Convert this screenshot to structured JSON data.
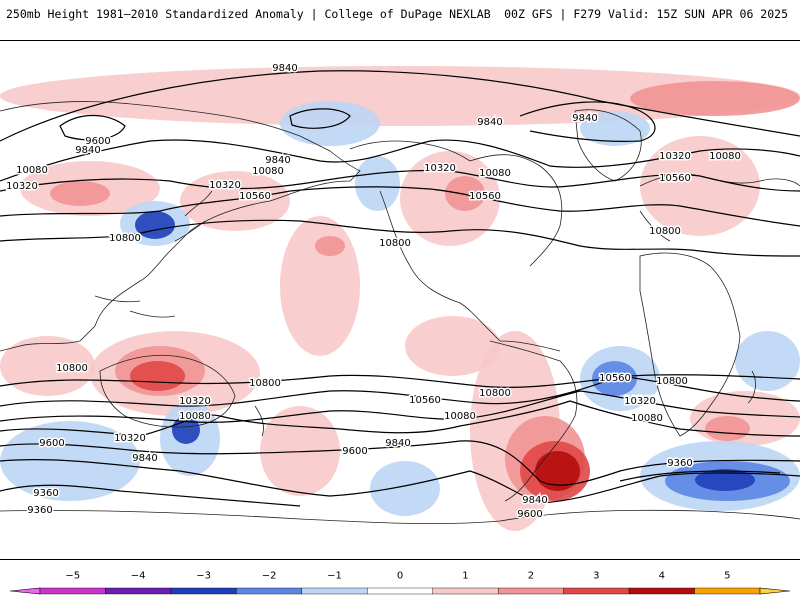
{
  "header": {
    "title_left": "250mb Height 1981–2010 Standardized Anomaly | College of DuPage NEXLAB",
    "title_right": "00Z GFS | F279 Valid: 15Z SUN APR 06 2025"
  },
  "map": {
    "land_color": "#ffffff",
    "coast_color": "#222222",
    "contour_color": "#000000",
    "anomaly_colors": {
      "neg3": "#1f3fb8",
      "neg2": "#5b85e6",
      "neg1": "#bcd6f5",
      "pos1": "#f8c9c9",
      "pos2": "#f19494",
      "pos3": "#e04848",
      "pos4": "#b50c0c"
    },
    "contour_labels": [
      {
        "text": "9840"
      },
      {
        "text": "9600"
      },
      {
        "text": "9840"
      },
      {
        "text": "10080"
      },
      {
        "text": "10320"
      },
      {
        "text": "9840"
      },
      {
        "text": "10080"
      },
      {
        "text": "10320"
      },
      {
        "text": "10560"
      },
      {
        "text": "10800"
      },
      {
        "text": "10320"
      },
      {
        "text": "10080"
      },
      {
        "text": "10560"
      },
      {
        "text": "9840"
      },
      {
        "text": "9840"
      },
      {
        "text": "10320"
      },
      {
        "text": "10080"
      },
      {
        "text": "10560"
      },
      {
        "text": "10800"
      },
      {
        "text": "10800"
      },
      {
        "text": "10800"
      },
      {
        "text": "10800"
      },
      {
        "text": "10560"
      },
      {
        "text": "10080"
      },
      {
        "text": "10320"
      },
      {
        "text": "9600"
      },
      {
        "text": "9840"
      },
      {
        "text": "9360"
      },
      {
        "text": "9360"
      },
      {
        "text": "10560"
      },
      {
        "text": "10080"
      },
      {
        "text": "10320"
      },
      {
        "text": "9840"
      },
      {
        "text": "9600"
      },
      {
        "text": "10800"
      },
      {
        "text": "10560"
      },
      {
        "text": "10800"
      },
      {
        "text": "10320"
      },
      {
        "text": "10080"
      },
      {
        "text": "9840"
      },
      {
        "text": "9600"
      },
      {
        "text": "9360"
      }
    ]
  },
  "colorbar": {
    "min": -5,
    "max": 5,
    "ticks": [
      "−5",
      "−4",
      "−3",
      "−2",
      "−1",
      "0",
      "1",
      "2",
      "3",
      "4",
      "5"
    ],
    "colors": [
      "#cc33cc",
      "#6a1fb0",
      "#1f3fb8",
      "#5b85e6",
      "#bcd6f5",
      "#ffffff",
      "#f8c9c9",
      "#f19494",
      "#e04848",
      "#b50c0c",
      "#f5a300"
    ],
    "left_arrow_color": "#ee66ee",
    "right_arrow_color": "#ffd23a"
  }
}
